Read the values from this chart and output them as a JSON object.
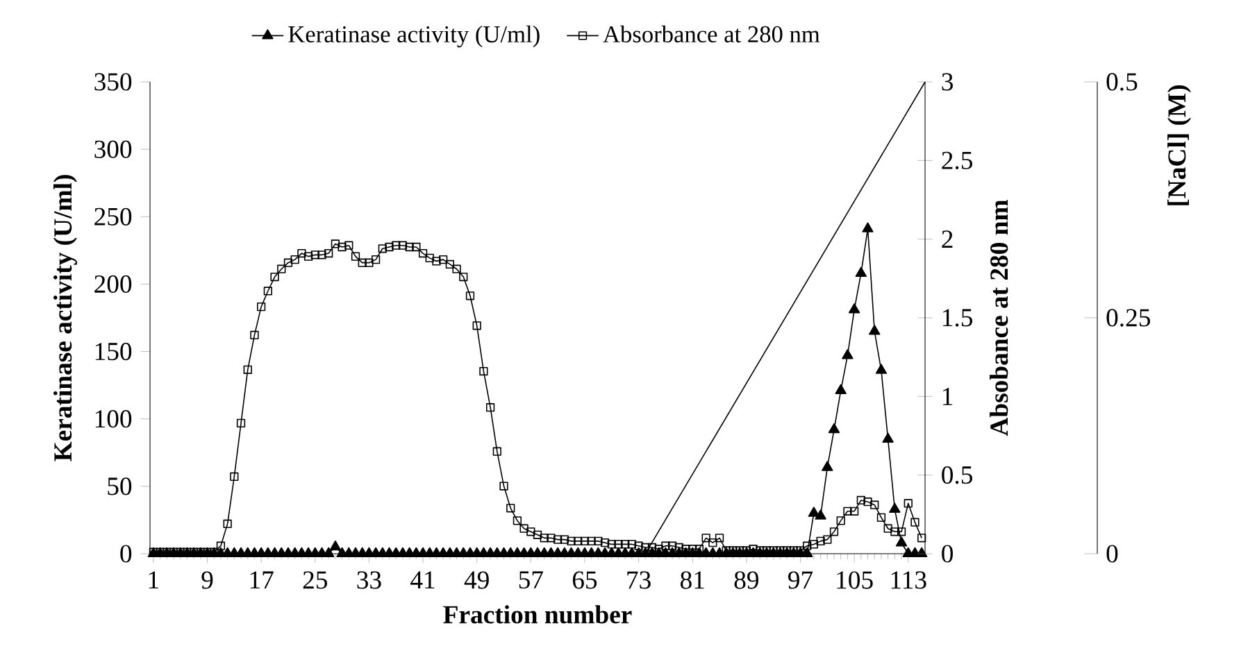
{
  "chart_data": {
    "type": "line",
    "xlabel": "Fraction number",
    "ylabel": "Keratinase activity (U/ml)",
    "y2label": "Absobance at 280 nm",
    "y3label": "[NaCl] (M)",
    "legend": "top",
    "x": [
      1,
      2,
      3,
      4,
      5,
      6,
      7,
      8,
      9,
      10,
      11,
      12,
      13,
      14,
      15,
      16,
      17,
      18,
      19,
      20,
      21,
      22,
      23,
      24,
      25,
      26,
      27,
      28,
      29,
      30,
      31,
      32,
      33,
      34,
      35,
      36,
      37,
      38,
      39,
      40,
      41,
      42,
      43,
      44,
      45,
      46,
      47,
      48,
      49,
      50,
      51,
      52,
      53,
      54,
      55,
      56,
      57,
      58,
      59,
      60,
      61,
      62,
      63,
      64,
      65,
      66,
      67,
      68,
      69,
      70,
      71,
      72,
      73,
      74,
      75,
      76,
      77,
      78,
      79,
      80,
      81,
      82,
      83,
      84,
      85,
      86,
      87,
      88,
      89,
      90,
      91,
      92,
      93,
      94,
      95,
      96,
      97,
      98,
      99,
      100,
      101,
      102,
      103,
      104,
      105,
      106,
      107,
      108,
      109,
      110,
      111,
      112,
      113,
      114,
      115
    ],
    "xlim": [
      0.5,
      115.5
    ],
    "xticks": [
      1,
      9,
      17,
      25,
      33,
      41,
      49,
      57,
      65,
      73,
      81,
      89,
      97,
      105,
      113
    ],
    "ylim": [
      0,
      350
    ],
    "yticks": [
      0,
      50,
      100,
      150,
      200,
      250,
      300,
      350
    ],
    "y2lim": [
      0,
      3
    ],
    "y2ticks": [
      0,
      0.5,
      1,
      1.5,
      2,
      2.5,
      3
    ],
    "y3lim": [
      0,
      0.5
    ],
    "y3ticks": [
      0,
      0.25,
      0.5
    ],
    "series": [
      {
        "name": "Keratinase activity (U/ml)",
        "color": "#000000",
        "marker": "triangle",
        "values": [
          0,
          0,
          0,
          0,
          0,
          0,
          0,
          0,
          0,
          0,
          0,
          0,
          0,
          0,
          0,
          0,
          0,
          0,
          0,
          0,
          0,
          0,
          0,
          0,
          0,
          0,
          0,
          5,
          0,
          0,
          0,
          0,
          0,
          0,
          0,
          0,
          0,
          0,
          0,
          0,
          0,
          0,
          0,
          0,
          0,
          0,
          0,
          0,
          0,
          0,
          0,
          0,
          0,
          0,
          0,
          0,
          0,
          0,
          0,
          0,
          0,
          0,
          0,
          0,
          0,
          0,
          0,
          0,
          0,
          0,
          0,
          0,
          0,
          0,
          0,
          0,
          0,
          0,
          0,
          0,
          0,
          0,
          0,
          0,
          0,
          0,
          0,
          0,
          0,
          0,
          0,
          0,
          0,
          0,
          0,
          0,
          0,
          0,
          30,
          28,
          64,
          92,
          121,
          147,
          181,
          208,
          241,
          165,
          136,
          85,
          33,
          8,
          0,
          0,
          0
        ]
      },
      {
        "name": "Absorbance at 280 nm",
        "color": "#000000",
        "marker": "square",
        "axis": "y2",
        "values": [
          0.01,
          0.01,
          0.01,
          0.01,
          0.01,
          0.01,
          0.01,
          0.01,
          0.01,
          0.01,
          0.05,
          0.19,
          0.49,
          0.83,
          1.17,
          1.39,
          1.57,
          1.67,
          1.76,
          1.81,
          1.85,
          1.87,
          1.91,
          1.89,
          1.9,
          1.9,
          1.91,
          1.97,
          1.95,
          1.96,
          1.89,
          1.85,
          1.85,
          1.87,
          1.94,
          1.95,
          1.96,
          1.96,
          1.95,
          1.95,
          1.91,
          1.88,
          1.86,
          1.87,
          1.84,
          1.81,
          1.76,
          1.64,
          1.45,
          1.16,
          0.93,
          0.65,
          0.43,
          0.29,
          0.21,
          0.16,
          0.14,
          0.12,
          0.1,
          0.1,
          0.09,
          0.09,
          0.08,
          0.08,
          0.08,
          0.08,
          0.08,
          0.07,
          0.06,
          0.06,
          0.06,
          0.06,
          0.05,
          0.04,
          0.04,
          0.03,
          0.05,
          0.05,
          0.04,
          0.03,
          0.03,
          0.03,
          0.1,
          0.07,
          0.1,
          0.02,
          0.02,
          0.02,
          0.02,
          0.03,
          0.02,
          0.02,
          0.02,
          0.02,
          0.02,
          0.02,
          0.02,
          0.05,
          0.06,
          0.08,
          0.09,
          0.14,
          0.21,
          0.27,
          0.27,
          0.34,
          0.33,
          0.31,
          0.23,
          0.16,
          0.14,
          0.14,
          0.32,
          0.2,
          0.1
        ]
      },
      {
        "color": "#000000",
        "marker": "none",
        "axis": "y3",
        "x": [
          74,
          115.5
        ],
        "values": [
          0,
          0.5
        ]
      }
    ]
  }
}
